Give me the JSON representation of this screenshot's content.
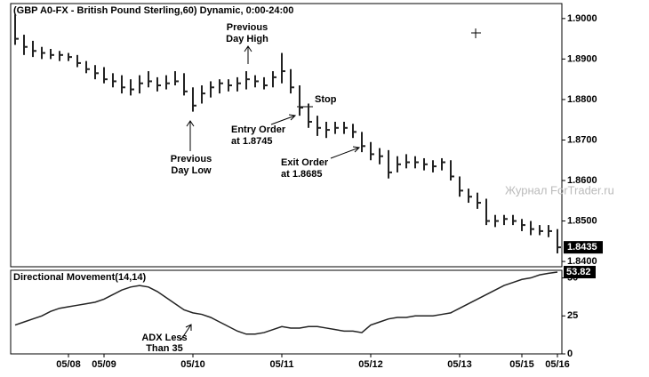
{
  "chart_data": [
    {
      "type": "ohlc",
      "title": "(GBP A0-FX - British Pound Sterling,60) Dynamic, 0:00-24:00",
      "x": [
        0,
        1,
        2,
        3,
        4,
        5,
        6,
        7,
        8,
        9,
        10,
        11,
        12,
        13,
        14,
        15,
        16,
        17,
        18,
        19,
        20,
        21,
        22,
        23,
        24,
        25,
        26,
        27,
        28,
        29,
        30,
        31,
        32,
        33,
        34,
        35,
        36,
        37,
        38,
        39,
        40,
        41,
        42,
        43,
        44,
        45,
        46,
        47,
        48,
        49,
        50,
        51,
        52,
        53,
        54,
        55,
        56,
        57,
        58,
        59,
        60,
        61
      ],
      "high": [
        1.901,
        1.896,
        1.8945,
        1.893,
        1.8925,
        1.892,
        1.8915,
        1.891,
        1.8895,
        1.8885,
        1.888,
        1.8865,
        1.886,
        1.885,
        1.886,
        1.887,
        1.8855,
        1.886,
        1.887,
        1.8865,
        1.883,
        1.8835,
        1.8845,
        1.885,
        1.885,
        1.8855,
        1.887,
        1.886,
        1.8855,
        1.887,
        1.8915,
        1.8875,
        1.8835,
        1.879,
        1.876,
        1.8745,
        1.8745,
        1.8745,
        1.874,
        1.872,
        1.8695,
        1.868,
        1.8675,
        1.866,
        1.8665,
        1.866,
        1.8655,
        1.865,
        1.8655,
        1.865,
        1.861,
        1.858,
        1.857,
        1.8555,
        1.8515,
        1.8515,
        1.8515,
        1.8505,
        1.85,
        1.849,
        1.849,
        1.848
      ],
      "low": [
        1.8935,
        1.891,
        1.8905,
        1.89,
        1.89,
        1.8895,
        1.8895,
        1.888,
        1.8865,
        1.885,
        1.884,
        1.883,
        1.8815,
        1.881,
        1.8815,
        1.883,
        1.882,
        1.8825,
        1.8835,
        1.881,
        1.877,
        1.879,
        1.8805,
        1.8815,
        1.882,
        1.882,
        1.8825,
        1.883,
        1.8825,
        1.883,
        1.884,
        1.8815,
        1.876,
        1.873,
        1.871,
        1.8705,
        1.8715,
        1.8715,
        1.8705,
        1.867,
        1.865,
        1.864,
        1.8605,
        1.862,
        1.863,
        1.863,
        1.8625,
        1.862,
        1.8625,
        1.86,
        1.856,
        1.8545,
        1.853,
        1.849,
        1.8485,
        1.849,
        1.849,
        1.8475,
        1.8465,
        1.8465,
        1.846,
        1.842
      ],
      "close": [
        1.895,
        1.893,
        1.892,
        1.8915,
        1.891,
        1.891,
        1.8905,
        1.889,
        1.8875,
        1.8865,
        1.885,
        1.8845,
        1.883,
        1.8825,
        1.884,
        1.8845,
        1.8835,
        1.884,
        1.8845,
        1.882,
        1.8785,
        1.8815,
        1.883,
        1.884,
        1.8835,
        1.884,
        1.885,
        1.8845,
        1.8835,
        1.8855,
        1.887,
        1.883,
        1.878,
        1.8745,
        1.873,
        1.8725,
        1.873,
        1.873,
        1.872,
        1.8685,
        1.8665,
        1.866,
        1.862,
        1.864,
        1.8645,
        1.8645,
        1.864,
        1.8635,
        1.8645,
        1.861,
        1.8575,
        1.856,
        1.8545,
        1.85,
        1.85,
        1.8505,
        1.85,
        1.849,
        1.848,
        1.8475,
        1.8475,
        1.8435
      ],
      "color": "#222222",
      "xlim": [
        -0.5,
        61.5
      ],
      "ylim": [
        1.8387,
        1.9037
      ],
      "yticks": [
        {
          "value": 1.84,
          "label": "1.8400"
        },
        {
          "value": 1.85,
          "label": "1.8500"
        },
        {
          "value": 1.86,
          "label": "1.8600"
        },
        {
          "value": 1.87,
          "label": "1.8700"
        },
        {
          "value": 1.88,
          "label": "1.8800"
        },
        {
          "value": 1.89,
          "label": "1.8900"
        },
        {
          "value": 1.9,
          "label": "1.9000"
        }
      ],
      "annotations": [
        {
          "lines": [
            "Previous",
            "Day High"
          ]
        },
        {
          "lines": [
            "Previous",
            "Day Low"
          ]
        },
        {
          "lines": [
            "Stop"
          ]
        },
        {
          "lines": [
            "Entry Order",
            "at 1.8745"
          ]
        },
        {
          "lines": [
            "Exit Order",
            "at 1.8685"
          ]
        }
      ]
    },
    {
      "type": "line",
      "title": "Directional Movement(14,14)",
      "x": [
        0,
        1,
        2,
        3,
        4,
        5,
        6,
        7,
        8,
        9,
        10,
        11,
        12,
        13,
        14,
        15,
        16,
        17,
        18,
        19,
        20,
        21,
        22,
        23,
        24,
        25,
        26,
        27,
        28,
        29,
        30,
        31,
        32,
        33,
        34,
        35,
        36,
        37,
        38,
        39,
        40,
        41,
        42,
        43,
        44,
        45,
        46,
        47,
        48,
        49,
        50,
        51,
        52,
        53,
        54,
        55,
        56,
        57,
        58,
        59,
        60,
        61
      ],
      "values": [
        19,
        21,
        23,
        25,
        28,
        30,
        31,
        32,
        33,
        34,
        36,
        39,
        42,
        44,
        45,
        44,
        41,
        37,
        33,
        29,
        27,
        26,
        24,
        21,
        18,
        15,
        13,
        13,
        14,
        16,
        18,
        17,
        17,
        18,
        18,
        17,
        16,
        15,
        15,
        14,
        19,
        21,
        23,
        24,
        24,
        25,
        25,
        25,
        26,
        27,
        30,
        33,
        36,
        39,
        42,
        45,
        47,
        49,
        50,
        52,
        53,
        53.82
      ],
      "color": "#222222",
      "xlim": [
        -0.5,
        61.5
      ],
      "ylim": [
        0,
        55
      ],
      "yticks": [
        0,
        25,
        50
      ],
      "xticks": [
        {
          "value": 6,
          "label": "05/08"
        },
        {
          "value": 10,
          "label": "05/09"
        },
        {
          "value": 20,
          "label": "05/10"
        },
        {
          "value": 30,
          "label": "05/11"
        },
        {
          "value": 40,
          "label": "05/12"
        },
        {
          "value": 50,
          "label": "05/13"
        },
        {
          "value": 57,
          "label": "05/15"
        },
        {
          "value": 61,
          "label": "05/16"
        }
      ],
      "annotations": [
        {
          "lines": [
            "ADX Less",
            "Than 35"
          ]
        }
      ]
    }
  ],
  "watermark": "Журнал ForTrader.ru"
}
